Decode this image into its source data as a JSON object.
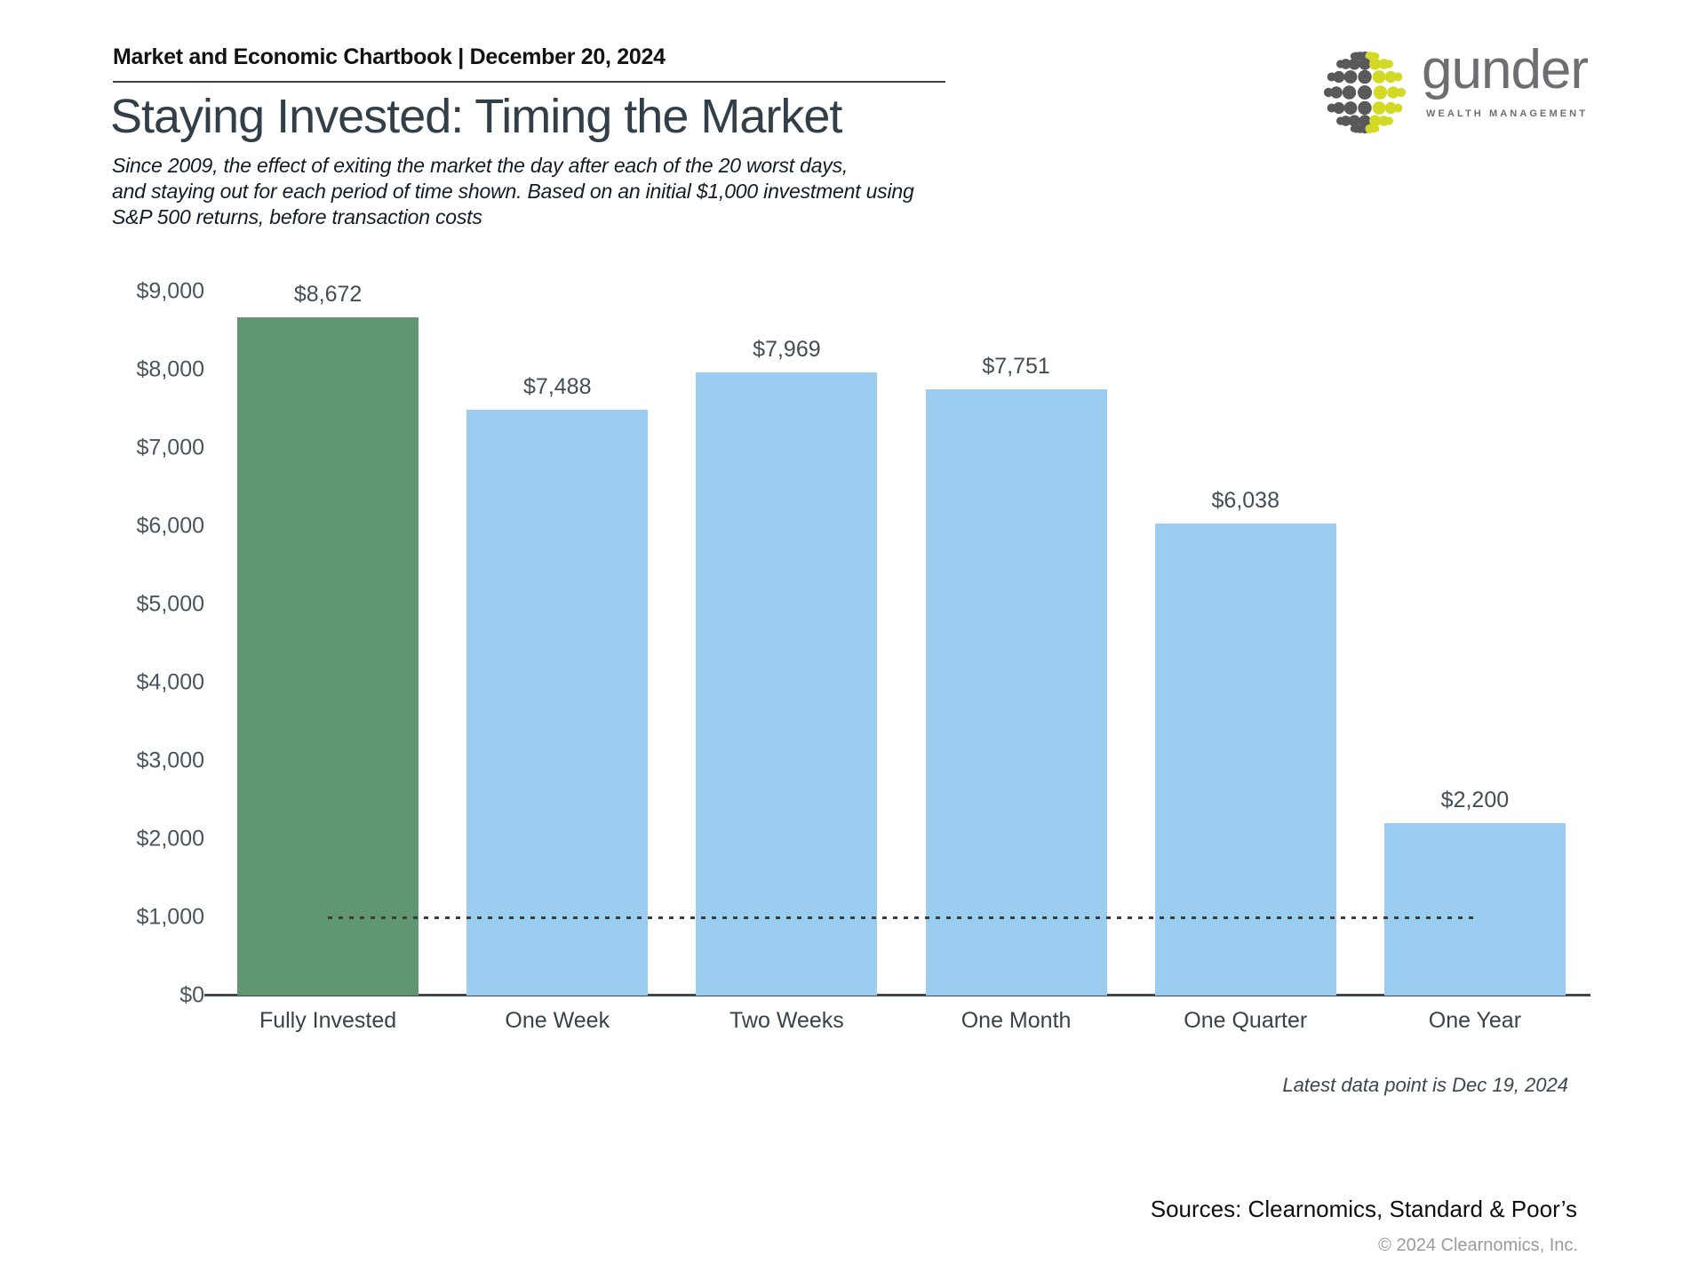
{
  "header": {
    "chartbook_label": "Market and Economic Chartbook | December 20, 2024"
  },
  "logo": {
    "name": "gunder",
    "tagline": "WEALTH MANAGEMENT",
    "text_color": "#6d6e71",
    "dot_gray": "#58595b",
    "dot_yellow": "#d3da25"
  },
  "title": "Staying Invested: Timing the Market",
  "subtitle": "Since 2009, the effect of exiting the market the day after each of the 20 worst days,\nand staying out for each period of time shown. Based on an initial $1,000 investment using\nS&P 500 returns, before transaction costs",
  "chart_data": {
    "type": "bar",
    "categories": [
      "Fully Invested",
      "One Week",
      "Two Weeks",
      "One Month",
      "One Quarter",
      "One Year"
    ],
    "values": [
      8672,
      7488,
      7969,
      7751,
      6038,
      2200
    ],
    "value_labels": [
      "$8,672",
      "$7,488",
      "$7,969",
      "$7,751",
      "$6,038",
      "$2,200"
    ],
    "bar_colors": [
      "#609672",
      "#9bcdf1",
      "#9bcdf1",
      "#9bcdf1",
      "#9bcdf1",
      "#9bcdf1"
    ],
    "title": "Staying Invested: Timing the Market",
    "xlabel": "",
    "ylabel": "",
    "ylim": [
      0,
      9000
    ],
    "ytick_step": 1000,
    "ytick_labels": [
      "$0",
      "$1,000",
      "$2,000",
      "$3,000",
      "$4,000",
      "$5,000",
      "$6,000",
      "$7,000",
      "$8,000",
      "$9,000"
    ],
    "grid": false,
    "legend": false,
    "reference_line": {
      "value": 1000,
      "style": "dotted",
      "span": "first-bar-center-to-last-bar-center"
    }
  },
  "footnotes": {
    "latest": "Latest data point is Dec 19, 2024",
    "sources": "Sources: Clearnomics, Standard & Poor’s",
    "copyright": "© 2024 Clearnomics, Inc."
  }
}
